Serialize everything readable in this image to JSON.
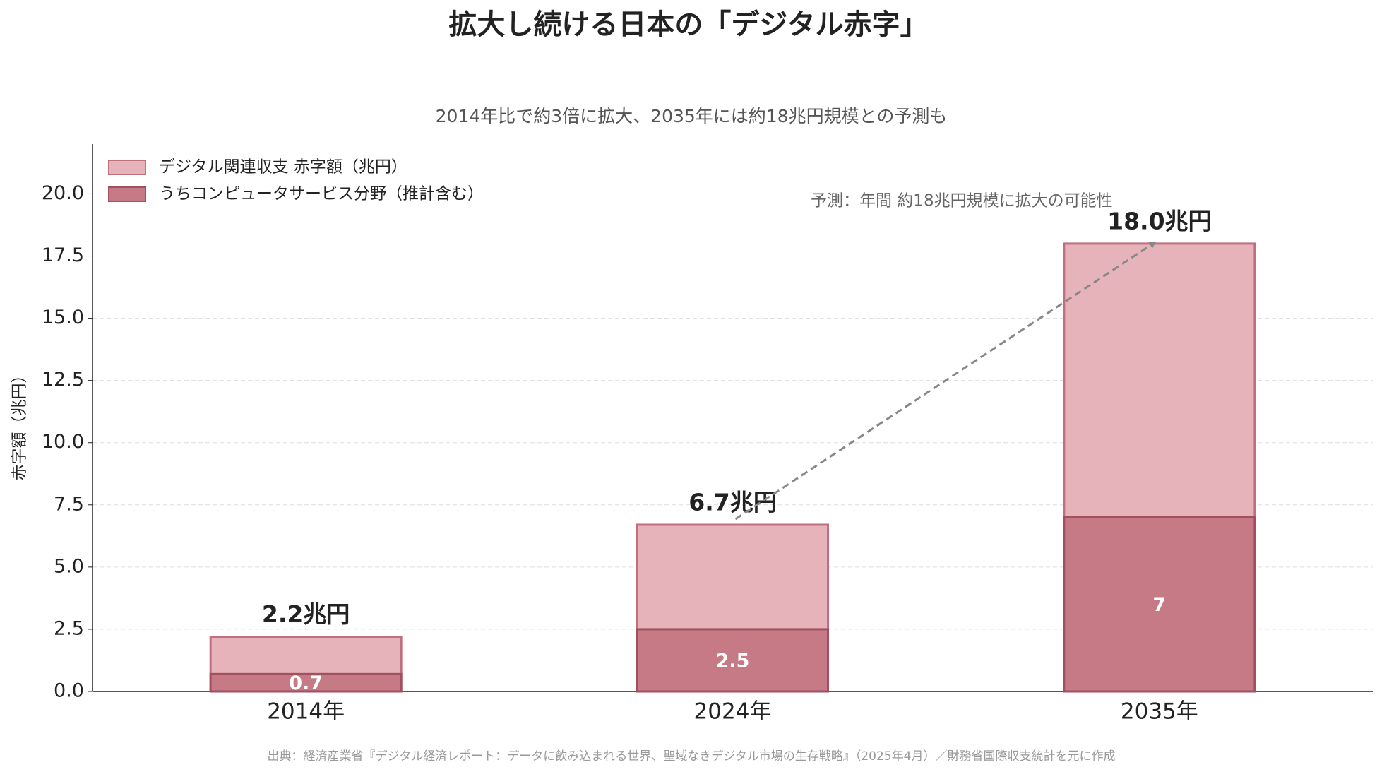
{
  "chart_data": {
    "type": "bar",
    "title": "拡大し続ける日本の「デジタル赤字」",
    "subtitle": "2014年比で約3倍に拡大、2035年には約18兆円規模との予測も",
    "y_label": "赤字額（兆円）",
    "categories": [
      "2014年",
      "2024年",
      "2035年"
    ],
    "series": [
      {
        "name": "デジタル関連収支 赤字額（兆円）",
        "color": "#e5b3b9",
        "values": [
          2.2,
          6.7,
          18.0
        ],
        "value_labels": [
          "2.2兆円",
          "6.7兆円",
          "18.0兆円"
        ]
      },
      {
        "name": "うちコンピュータサービス分野（推計含む）",
        "color": "#c57a85",
        "values": [
          0.7,
          2.5,
          7.0
        ]
      }
    ],
    "ylim": [
      0,
      22
    ],
    "yticks": [
      {
        "value": 0,
        "label": "0.0"
      },
      2.5,
      {
        "value": 5,
        "label": "5.0"
      },
      7.5,
      {
        "value": 10,
        "label": "10.0"
      },
      12.5,
      {
        "value": 15,
        "label": "15.0"
      },
      17.5,
      {
        "value": 20,
        "label": "20.0"
      }
    ],
    "grid": true,
    "legend": "upper left",
    "annotation": "予測：年間 約18兆円規模に拡大の可能性",
    "source": "出典：経済産業省『デジタル経済レポート：データに飲み込まれる世界、聖域なきデジタル市場の生存戦略』（2025年4月）／財務省国際収支統計を元に作成"
  }
}
